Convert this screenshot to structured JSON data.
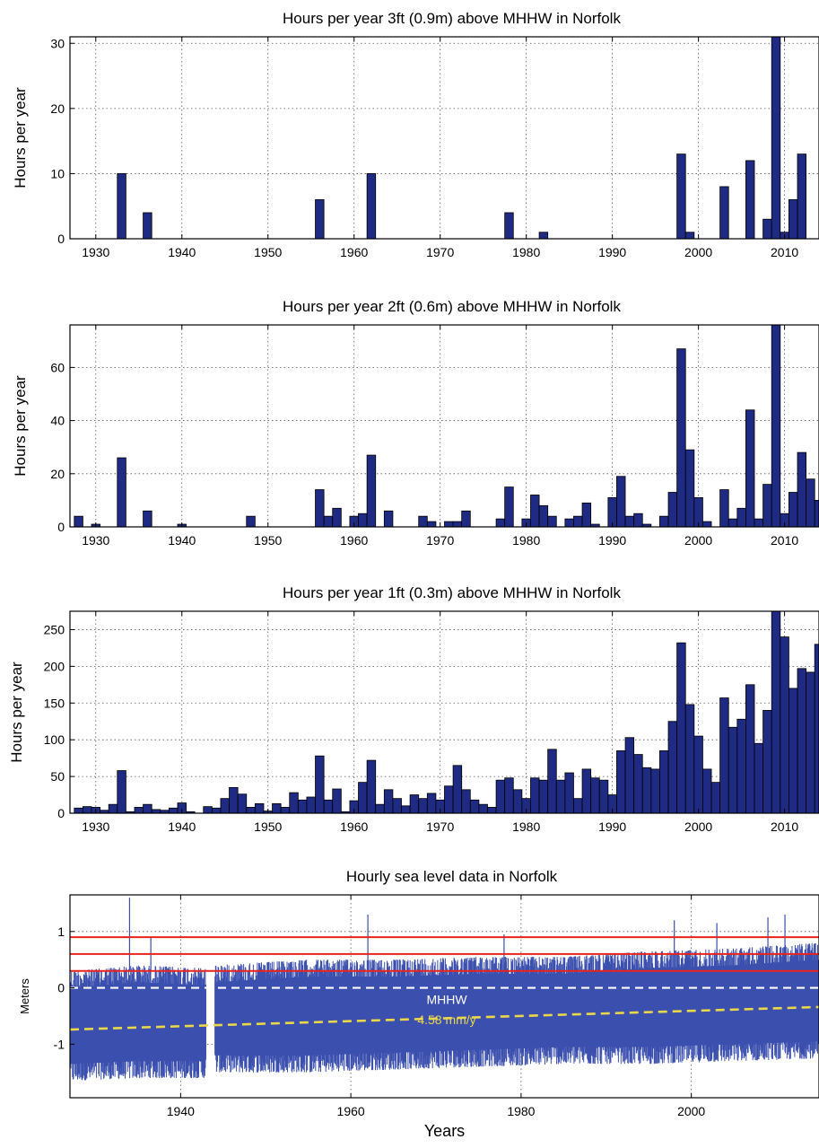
{
  "colors": {
    "bar": "#1f2a83",
    "sea": "#3a4fae",
    "threshold": "#e8231c",
    "mhhw": "#ffffff",
    "trend": "#ecd64a"
  },
  "chart_data": [
    {
      "type": "bar",
      "title": "Hours per year 3ft (0.9m) above MHHW in Norfolk",
      "ylabel": "Hours per year",
      "xlabel": "",
      "xlim": [
        1927,
        2014
      ],
      "ylim": [
        0,
        31
      ],
      "xticks": [
        1930,
        1940,
        1950,
        1960,
        1970,
        1980,
        1990,
        2000,
        2010
      ],
      "yticks": [
        0,
        10,
        20,
        30
      ],
      "grid": true,
      "x": [
        1933,
        1936,
        1956,
        1962,
        1978,
        1982,
        1998,
        1999,
        2003,
        2006,
        2008,
        2009,
        2010,
        2011,
        2012
      ],
      "values": [
        10,
        4,
        6,
        10,
        4,
        1,
        13,
        1,
        8,
        12,
        3,
        31,
        1,
        6,
        13
      ]
    },
    {
      "type": "bar",
      "title": "Hours per year 2ft (0.6m) above MHHW in Norfolk",
      "ylabel": "Hours per year",
      "xlabel": "",
      "xlim": [
        1927,
        2014
      ],
      "ylim": [
        0,
        76
      ],
      "xticks": [
        1930,
        1940,
        1950,
        1960,
        1970,
        1980,
        1990,
        2000,
        2010
      ],
      "yticks": [
        0,
        20,
        40,
        60
      ],
      "grid": true,
      "x": [
        1928,
        1930,
        1933,
        1936,
        1940,
        1948,
        1956,
        1957,
        1958,
        1960,
        1961,
        1962,
        1964,
        1968,
        1969,
        1971,
        1972,
        1973,
        1977,
        1978,
        1980,
        1981,
        1982,
        1983,
        1985,
        1986,
        1987,
        1988,
        1990,
        1991,
        1992,
        1993,
        1994,
        1996,
        1997,
        1998,
        1999,
        2000,
        2001,
        2003,
        2004,
        2005,
        2006,
        2007,
        2008,
        2009,
        2010,
        2011,
        2012,
        2013,
        2014
      ],
      "values": [
        4,
        1,
        26,
        6,
        1,
        4,
        14,
        4,
        7,
        4,
        5,
        27,
        6,
        4,
        2,
        2,
        2,
        6,
        3,
        15,
        3,
        12,
        8,
        4,
        3,
        4,
        9,
        1,
        11,
        19,
        4,
        5,
        1,
        4,
        13,
        67,
        29,
        11,
        2,
        14,
        3,
        7,
        44,
        3,
        16,
        76,
        5,
        13,
        28,
        18,
        10
      ]
    },
    {
      "type": "bar",
      "title": "Hours per year 1ft (0.3m) above MHHW in Norfolk",
      "ylabel": "Hours per year",
      "xlabel": "",
      "xlim": [
        1927,
        2014
      ],
      "ylim": [
        0,
        275
      ],
      "xticks": [
        1930,
        1940,
        1950,
        1960,
        1970,
        1980,
        1990,
        2000,
        2010
      ],
      "yticks": [
        0,
        50,
        100,
        150,
        200,
        250
      ],
      "grid": true,
      "x": [
        1928,
        1929,
        1930,
        1931,
        1932,
        1933,
        1934,
        1935,
        1936,
        1937,
        1938,
        1939,
        1940,
        1941,
        1942,
        1943,
        1944,
        1945,
        1946,
        1947,
        1948,
        1949,
        1950,
        1951,
        1952,
        1953,
        1954,
        1955,
        1956,
        1957,
        1958,
        1959,
        1960,
        1961,
        1962,
        1963,
        1964,
        1965,
        1966,
        1967,
        1968,
        1969,
        1970,
        1971,
        1972,
        1973,
        1974,
        1975,
        1976,
        1977,
        1978,
        1979,
        1980,
        1981,
        1982,
        1983,
        1984,
        1985,
        1986,
        1987,
        1988,
        1989,
        1990,
        1991,
        1992,
        1993,
        1994,
        1995,
        1996,
        1997,
        1998,
        1999,
        2000,
        2001,
        2002,
        2003,
        2004,
        2005,
        2006,
        2007,
        2008,
        2009,
        2010,
        2011,
        2012,
        2013,
        2014
      ],
      "values": [
        7,
        9,
        8,
        4,
        12,
        58,
        2,
        8,
        12,
        5,
        4,
        7,
        14,
        2,
        0,
        9,
        7,
        20,
        35,
        26,
        8,
        13,
        3,
        13,
        8,
        28,
        18,
        22,
        78,
        18,
        33,
        2,
        17,
        42,
        72,
        12,
        32,
        20,
        10,
        25,
        20,
        27,
        18,
        37,
        65,
        32,
        18,
        12,
        8,
        45,
        48,
        32,
        20,
        48,
        45,
        87,
        45,
        55,
        20,
        60,
        48,
        45,
        25,
        85,
        103,
        80,
        62,
        60,
        85,
        125,
        232,
        148,
        105,
        60,
        42,
        157,
        117,
        128,
        175,
        95,
        140,
        275,
        240,
        170,
        197,
        192,
        230
      ]
    },
    {
      "type": "line",
      "title": "Hourly sea level data in Norfolk",
      "ylabel": "Meters",
      "xlabel": "Years",
      "xlim": [
        1927,
        2015
      ],
      "ylim": [
        -1.95,
        1.65
      ],
      "xticks": [
        1940,
        1960,
        1980,
        2000
      ],
      "yticks": [
        -1,
        0,
        1
      ],
      "grid": true,
      "data_gap": [
        1943,
        1944
      ],
      "series": [
        {
          "name": "",
          "kind": "hourly_envelope",
          "x": [
            1927,
            1935,
            1942.8,
            1943.8,
            1955,
            1965,
            1975,
            1985,
            1995,
            2005,
            2015
          ],
          "high": [
            0.35,
            0.45,
            0.4,
            0.45,
            0.55,
            0.55,
            0.6,
            0.6,
            0.7,
            0.75,
            0.85
          ],
          "low": [
            -1.7,
            -1.65,
            -1.65,
            -1.55,
            -1.55,
            -1.5,
            -1.45,
            -1.4,
            -1.4,
            -1.35,
            -1.3
          ],
          "spikes": [
            [
              1934,
              1.6
            ],
            [
              1936.5,
              0.9
            ],
            [
              1962,
              1.3
            ],
            [
              1978,
              0.95
            ],
            [
              1998,
              1.2
            ],
            [
              2003,
              1.15
            ],
            [
              2009,
              1.25
            ],
            [
              2011,
              1.3
            ]
          ]
        },
        {
          "name": "",
          "kind": "threshold",
          "y": 0.9
        },
        {
          "name": "",
          "kind": "threshold",
          "y": 0.6
        },
        {
          "name": "",
          "kind": "threshold",
          "y": 0.3
        },
        {
          "name": "MHHW",
          "kind": "mhhw",
          "y": 0
        },
        {
          "name": "4.58 mm/y",
          "kind": "trend",
          "x": [
            1927,
            2015
          ],
          "y": [
            -0.74,
            -0.34
          ]
        }
      ],
      "annotations": [
        "MHHW",
        "4.58 mm/y"
      ]
    }
  ]
}
